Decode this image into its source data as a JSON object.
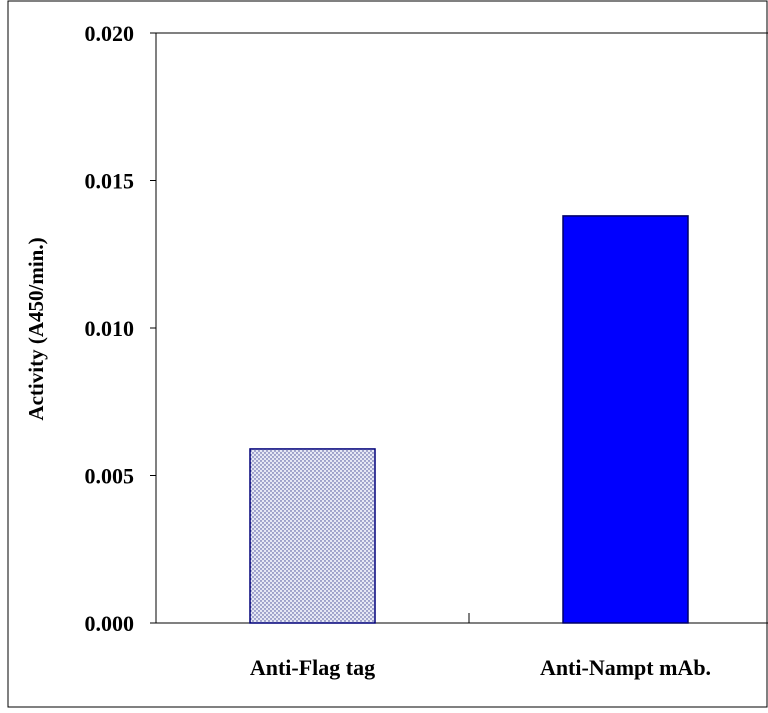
{
  "chart_data": {
    "type": "bar",
    "title": "",
    "xlabel": "",
    "ylabel": "Activity (A450/min.)",
    "categories": [
      "Anti-Flag tag",
      "Anti-Nampt mAb."
    ],
    "values": [
      0.0059,
      0.0138
    ],
    "ylim": [
      0,
      0.02
    ],
    "yticks": [
      0.0,
      0.005,
      0.01,
      0.015,
      0.02
    ],
    "ytick_labels": [
      "0.000",
      "0.005",
      "0.010",
      "0.015",
      "0.020"
    ],
    "grid": false,
    "legend": "none",
    "bar_styles": [
      {
        "fill": "#d4d7ee",
        "pattern": "dotted",
        "stroke": "#00007a"
      },
      {
        "fill": "#0000ff",
        "pattern": "solid",
        "stroke": "#000066"
      }
    ]
  }
}
